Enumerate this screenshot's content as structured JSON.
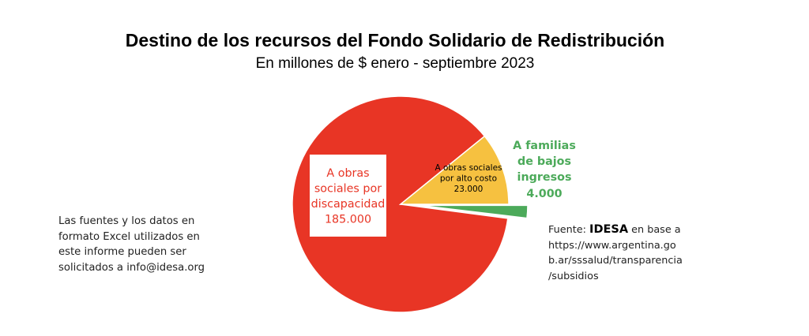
{
  "chart_data": {
    "type": "pie",
    "title": "Destino de los recursos del Fondo Solidario de Redistribución",
    "subtitle": "En millones de $ enero - septiembre 2023",
    "slices": [
      {
        "label_lines": [
          "A obras",
          "sociales por",
          "discapacidad"
        ],
        "value": 185000,
        "value_label": "185.000",
        "color": "#E83525",
        "label_color": "#E83525",
        "label_box": "#FFFFFF"
      },
      {
        "label_lines": [
          "A obras sociales",
          "por alto costo"
        ],
        "value": 23000,
        "value_label": "23.000",
        "color": "#F6C140",
        "label_color": "#000000"
      },
      {
        "label_lines": [
          "A familias",
          "de bajos",
          "ingresos"
        ],
        "value": 4000,
        "value_label": "4.000",
        "color": "#4CAA5A",
        "label_color": "#4CAA5A",
        "exploded": true
      }
    ]
  },
  "left_note": "Las fuentes y los datos en formato Excel utilizados en este informe pueden ser solicitados a info@idesa.org",
  "source": {
    "prefix": "Fuente:",
    "brand": "IDESA",
    "suffix": "en base a",
    "url_lines": [
      "https://www.argentina.go",
      "b.ar/sssalud/transparencia",
      "/subsidios"
    ]
  }
}
